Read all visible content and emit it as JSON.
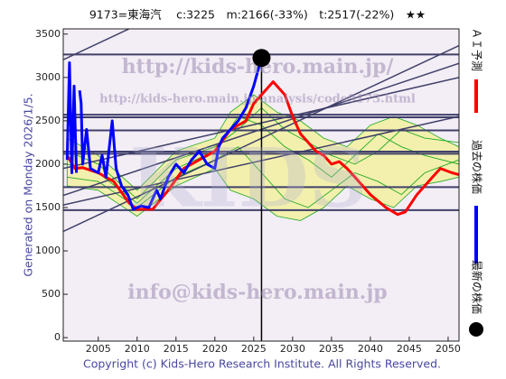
{
  "chart_data": {
    "type": "line",
    "title": "9173=東海汽　 c:3225　m:2166(-33%)　t:2517(-22%)　★★",
    "side_label": "Generated on Monday 2026/1/5.",
    "footer": "Copyright (c) Kids-Hero Research Institute. All Rights Reserved.",
    "watermarks": [
      "http://kids-hero.main.jp/",
      "http://kids-hero.main.jp/analysis/code9173.html",
      "info@kids-hero.main.jp",
      "KIDS"
    ],
    "xlim": [
      2000.5,
      2051.4
    ],
    "ylim": [
      -40,
      3560
    ],
    "xticks": [
      2005,
      2010,
      2015,
      2020,
      2025,
      2030,
      2035,
      2040,
      2045,
      2050
    ],
    "yticks": [
      0,
      500,
      1000,
      1500,
      2000,
      2500,
      3000,
      3500
    ],
    "series": [
      {
        "name": "ＡＩ予測",
        "color": "#ff0000",
        "x": [
          2001,
          2002,
          2003,
          2005,
          2007,
          2009,
          2010,
          2012,
          2014,
          2016,
          2018,
          2020,
          2022,
          2024,
          2025,
          2026.5,
          2027.5,
          2029,
          2030,
          2031,
          2033,
          2034,
          2035,
          2036,
          2037,
          2038,
          2040,
          2042,
          2043.5,
          2044.5,
          2046,
          2048,
          2049,
          2050.5,
          2051.4
        ],
        "values": [
          2100,
          1950,
          1960,
          1900,
          1800,
          1550,
          1480,
          1480,
          1700,
          1950,
          2050,
          2150,
          2400,
          2500,
          2700,
          2850,
          2950,
          2800,
          2550,
          2350,
          2150,
          2100,
          2000,
          2030,
          1950,
          1850,
          1650,
          1500,
          1420,
          1450,
          1650,
          1850,
          1950,
          1900,
          1880
        ]
      },
      {
        "name": "過去の株価",
        "color": "#0000ff",
        "x": [
          2001,
          2001.3,
          2001.6,
          2001.9,
          2002.2,
          2002.5,
          2002.6,
          2002.8,
          2003,
          2003.5,
          2004,
          2005,
          2005.5,
          2006,
          2006.8,
          2007.3,
          2008,
          2008.8,
          2009.5,
          2010.5,
          2011.5,
          2012.5,
          2013,
          2014,
          2015,
          2016,
          2017,
          2018,
          2019,
          2020,
          2020.5,
          2021,
          2022,
          2023,
          2024,
          2025,
          2025.6,
          2026
        ],
        "values": [
          2050,
          3170,
          1900,
          2900,
          1900,
          null,
          2850,
          2700,
          2000,
          2400,
          1950,
          1900,
          2100,
          1850,
          2500,
          1950,
          1750,
          1650,
          1480,
          1520,
          1500,
          1700,
          1600,
          1850,
          2000,
          1900,
          2050,
          2150,
          2000,
          1950,
          2200,
          2300,
          2400,
          2500,
          2650,
          2900,
          3100,
          3225
        ]
      }
    ],
    "latest": {
      "name": "最新の株価",
      "color": "#000000",
      "x": 2026,
      "value": 3225
    },
    "levels": [
      3265,
      2570,
      2540,
      2390,
      2145,
      2120,
      1735,
      1470
    ],
    "trend_lines": [
      {
        "x": [
          2000.5,
          2051.4
        ],
        "values": [
          3204,
          5347
        ]
      },
      {
        "x": [
          2000.5,
          2051.4
        ],
        "values": [
          1224,
          3367
        ]
      },
      {
        "x": [
          2000.5,
          2051.4
        ],
        "values": [
          1640,
          3163
        ]
      },
      {
        "x": [
          2000.5,
          2051.4
        ],
        "values": [
          1950,
          3000
        ]
      },
      {
        "x": [
          2000.5,
          2051.4
        ],
        "values": [
          1530,
          2551
        ]
      }
    ],
    "band": {
      "color": "#f2f0a0",
      "x": [
        2001,
        2005,
        2010,
        2015,
        2020,
        2022,
        2025,
        2028,
        2031,
        2034,
        2037,
        2040,
        2043,
        2046,
        2049,
        2051.4
      ],
      "upper": [
        2300,
        2100,
        1700,
        2150,
        2300,
        2600,
        2800,
        2600,
        2500,
        2300,
        2200,
        2450,
        2550,
        2450,
        2300,
        2200
      ],
      "lower": [
        1750,
        1700,
        1400,
        1750,
        1950,
        1700,
        1600,
        1400,
        1350,
        1500,
        1750,
        1600,
        1500,
        1750,
        1800,
        1850
      ]
    },
    "green_lines": [
      {
        "x": [
          2001,
          2005,
          2010,
          2015,
          2020,
          2023,
          2026,
          2029,
          2032,
          2035,
          2038,
          2041,
          2044,
          2047,
          2051.4
        ],
        "values": [
          2000,
          1900,
          1550,
          1950,
          2150,
          2550,
          2450,
          2200,
          2050,
          1850,
          2100,
          2350,
          2200,
          2100,
          2000
        ]
      },
      {
        "x": [
          2001,
          2005,
          2010,
          2015,
          2020,
          2023,
          2026,
          2029,
          2032,
          2035,
          2038,
          2041,
          2044,
          2047,
          2051.4
        ],
        "values": [
          1850,
          1800,
          1500,
          1850,
          2050,
          2200,
          1900,
          1600,
          1500,
          1700,
          1900,
          1800,
          1650,
          1900,
          2050
        ]
      },
      {
        "x": [
          2001,
          2005,
          2010,
          2015,
          2020,
          2023,
          2026,
          2029,
          2032,
          2035,
          2038,
          2041,
          2044,
          2047,
          2051.4
        ],
        "values": [
          2150,
          2000,
          1600,
          2050,
          2200,
          2400,
          2650,
          2400,
          2250,
          2100,
          2000,
          2150,
          2400,
          2300,
          2250
        ]
      }
    ],
    "line_color": "#40406a",
    "green": "#22aa22"
  }
}
